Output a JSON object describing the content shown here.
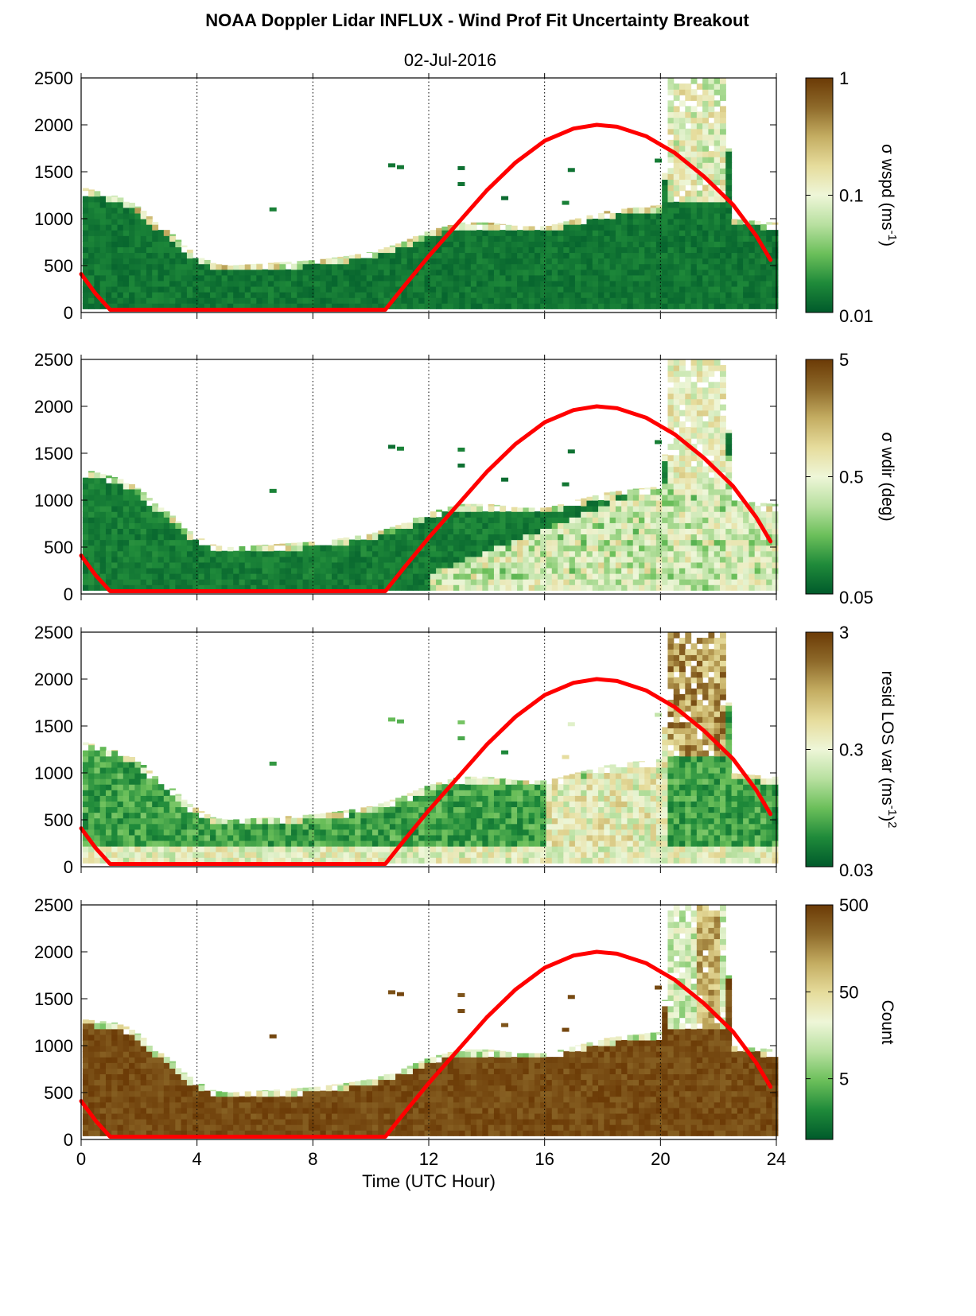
{
  "title": "NOAA Doppler Lidar INFLUX - Wind Prof Fit Uncertainty Breakout",
  "subtitle": "02-Jul-2016",
  "colors": {
    "curve": "#ff0000",
    "colormap": [
      "#005a2b",
      "#1f8a3a",
      "#6bbf5a",
      "#b8e0a0",
      "#eef6d8",
      "#e6dc9c",
      "#c4ad62",
      "#8e6a2a",
      "#6b3a06"
    ]
  },
  "chart_data": [
    {
      "type": "heatmap",
      "xlabel": "",
      "xlim": [
        0,
        24
      ],
      "xticks": [
        "0",
        "4",
        "8",
        "12",
        "16",
        "20",
        "24"
      ],
      "ylim": [
        0,
        2500
      ],
      "yticks": [
        "0",
        "500",
        "1000",
        "1500",
        "2000",
        "2500"
      ],
      "grid": "vertical dotted at 4-hour intervals",
      "colorbar": {
        "label": "σ wspd (ms",
        "label_sup": "-1",
        "label_end": ")",
        "scale": "log",
        "range": [
          0.01,
          1
        ],
        "ticks": [
          "0.01",
          "0.1",
          "1"
        ]
      },
      "data_top_m": [
        [
          0,
          1330
        ],
        [
          1,
          1250
        ],
        [
          1.5,
          1200
        ],
        [
          2,
          1100
        ],
        [
          2.5,
          950
        ],
        [
          3,
          850
        ],
        [
          3.5,
          700
        ],
        [
          4,
          600
        ],
        [
          4.5,
          520
        ],
        [
          5,
          500
        ],
        [
          6,
          520
        ],
        [
          7,
          540
        ],
        [
          8,
          560
        ],
        [
          9,
          600
        ],
        [
          10,
          650
        ],
        [
          11,
          750
        ],
        [
          11.5,
          820
        ],
        [
          12,
          880
        ],
        [
          13,
          960
        ],
        [
          14,
          960
        ],
        [
          15,
          920
        ],
        [
          16,
          920
        ],
        [
          17,
          1000
        ],
        [
          18,
          1080
        ],
        [
          19,
          1120
        ],
        [
          20,
          1150
        ],
        [
          20.2,
          2500
        ],
        [
          22.2,
          2500
        ],
        [
          22.3,
          1000
        ],
        [
          23.8,
          960
        ]
      ],
      "data_bottom_m": 40,
      "curve_points": [
        [
          0,
          410
        ],
        [
          0.5,
          200
        ],
        [
          1,
          30
        ],
        [
          10.5,
          30
        ],
        [
          11.2,
          300
        ],
        [
          12,
          600
        ],
        [
          13,
          950
        ],
        [
          14,
          1300
        ],
        [
          15,
          1600
        ],
        [
          16,
          1830
        ],
        [
          17,
          1960
        ],
        [
          17.8,
          2000
        ],
        [
          18.5,
          1980
        ],
        [
          19.5,
          1880
        ],
        [
          20.5,
          1700
        ],
        [
          21.5,
          1450
        ],
        [
          22.5,
          1150
        ],
        [
          23.3,
          820
        ],
        [
          23.8,
          560
        ]
      ]
    },
    {
      "type": "heatmap",
      "xlabel": "",
      "xlim": [
        0,
        24
      ],
      "xticks": [
        "0",
        "4",
        "8",
        "12",
        "16",
        "20",
        "24"
      ],
      "ylim": [
        0,
        2500
      ],
      "yticks": [
        "0",
        "500",
        "1000",
        "1500",
        "2000",
        "2500"
      ],
      "grid": "vertical dotted at 4-hour intervals",
      "colorbar": {
        "label": "σ wdir (deg)",
        "label_sup": "",
        "label_end": "",
        "scale": "log",
        "range": [
          0.05,
          5
        ],
        "ticks": [
          "0.05",
          "0.5",
          "5"
        ]
      },
      "data_top_m": [
        [
          0,
          1330
        ],
        [
          1,
          1250
        ],
        [
          1.5,
          1200
        ],
        [
          2,
          1100
        ],
        [
          2.5,
          950
        ],
        [
          3,
          850
        ],
        [
          3.5,
          700
        ],
        [
          4,
          600
        ],
        [
          4.5,
          520
        ],
        [
          5,
          500
        ],
        [
          6,
          520
        ],
        [
          7,
          540
        ],
        [
          8,
          560
        ],
        [
          9,
          600
        ],
        [
          10,
          650
        ],
        [
          11,
          750
        ],
        [
          11.5,
          820
        ],
        [
          12,
          880
        ],
        [
          13,
          960
        ],
        [
          14,
          960
        ],
        [
          15,
          920
        ],
        [
          16,
          920
        ],
        [
          17,
          1000
        ],
        [
          18,
          1080
        ],
        [
          19,
          1120
        ],
        [
          20,
          1150
        ],
        [
          20.2,
          2500
        ],
        [
          22.2,
          2500
        ],
        [
          22.3,
          1000
        ],
        [
          23.8,
          960
        ]
      ],
      "data_bottom_m": 40,
      "curve_points": [
        [
          0,
          410
        ],
        [
          0.5,
          200
        ],
        [
          1,
          30
        ],
        [
          10.5,
          30
        ],
        [
          11.2,
          300
        ],
        [
          12,
          600
        ],
        [
          13,
          950
        ],
        [
          14,
          1300
        ],
        [
          15,
          1600
        ],
        [
          16,
          1830
        ],
        [
          17,
          1960
        ],
        [
          17.8,
          2000
        ],
        [
          18.5,
          1980
        ],
        [
          19.5,
          1880
        ],
        [
          20.5,
          1700
        ],
        [
          21.5,
          1450
        ],
        [
          22.5,
          1150
        ],
        [
          23.3,
          820
        ],
        [
          23.8,
          560
        ]
      ]
    },
    {
      "type": "heatmap",
      "xlabel": "",
      "xlim": [
        0,
        24
      ],
      "xticks": [
        "0",
        "4",
        "8",
        "12",
        "16",
        "20",
        "24"
      ],
      "ylim": [
        0,
        2500
      ],
      "yticks": [
        "0",
        "500",
        "1000",
        "1500",
        "2000",
        "2500"
      ],
      "grid": "vertical dotted at 4-hour intervals",
      "colorbar": {
        "label": "resid LOS var (ms",
        "label_sup": "-1",
        "label_end": ")",
        "label_sup2": "2",
        "scale": "log",
        "range": [
          0.03,
          3
        ],
        "ticks": [
          "0.03",
          "0.3",
          "3"
        ]
      },
      "data_top_m": [
        [
          0,
          1330
        ],
        [
          1,
          1250
        ],
        [
          1.5,
          1200
        ],
        [
          2,
          1100
        ],
        [
          2.5,
          950
        ],
        [
          3,
          850
        ],
        [
          3.5,
          700
        ],
        [
          4,
          600
        ],
        [
          4.5,
          520
        ],
        [
          5,
          500
        ],
        [
          6,
          520
        ],
        [
          7,
          540
        ],
        [
          8,
          560
        ],
        [
          9,
          600
        ],
        [
          10,
          650
        ],
        [
          11,
          750
        ],
        [
          11.5,
          820
        ],
        [
          12,
          880
        ],
        [
          13,
          960
        ],
        [
          14,
          960
        ],
        [
          15,
          920
        ],
        [
          16,
          920
        ],
        [
          17,
          1000
        ],
        [
          18,
          1080
        ],
        [
          19,
          1120
        ],
        [
          20,
          1150
        ],
        [
          20.2,
          2500
        ],
        [
          22.2,
          2500
        ],
        [
          22.3,
          1000
        ],
        [
          23.8,
          960
        ]
      ],
      "data_bottom_m": 40,
      "curve_points": [
        [
          0,
          410
        ],
        [
          0.5,
          200
        ],
        [
          1,
          30
        ],
        [
          10.5,
          30
        ],
        [
          11.2,
          300
        ],
        [
          12,
          600
        ],
        [
          13,
          950
        ],
        [
          14,
          1300
        ],
        [
          15,
          1600
        ],
        [
          16,
          1830
        ],
        [
          17,
          1960
        ],
        [
          17.8,
          2000
        ],
        [
          18.5,
          1980
        ],
        [
          19.5,
          1880
        ],
        [
          20.5,
          1700
        ],
        [
          21.5,
          1450
        ],
        [
          22.5,
          1150
        ],
        [
          23.3,
          820
        ],
        [
          23.8,
          560
        ]
      ]
    },
    {
      "type": "heatmap",
      "xlabel": "Time (UTC Hour)",
      "xlim": [
        0,
        24
      ],
      "xticks": [
        "0",
        "4",
        "8",
        "12",
        "16",
        "20",
        "24"
      ],
      "ylim": [
        0,
        2500
      ],
      "yticks": [
        "0",
        "500",
        "1000",
        "1500",
        "2000",
        "2500"
      ],
      "grid": "vertical dotted at 4-hour intervals",
      "colorbar": {
        "label": "Count",
        "label_sup": "",
        "label_end": "",
        "scale": "log",
        "range": [
          1,
          500
        ],
        "ticks": [
          "5",
          "50",
          "500"
        ]
      },
      "data_top_m": [
        [
          0,
          1280
        ],
        [
          1,
          1250
        ],
        [
          1.5,
          1200
        ],
        [
          2,
          1100
        ],
        [
          2.5,
          950
        ],
        [
          3,
          850
        ],
        [
          3.5,
          700
        ],
        [
          4,
          600
        ],
        [
          4.5,
          520
        ],
        [
          5,
          500
        ],
        [
          6,
          520
        ],
        [
          7,
          540
        ],
        [
          8,
          560
        ],
        [
          9,
          600
        ],
        [
          10,
          650
        ],
        [
          11,
          750
        ],
        [
          11.5,
          820
        ],
        [
          12,
          880
        ],
        [
          13,
          960
        ],
        [
          14,
          960
        ],
        [
          15,
          920
        ],
        [
          16,
          920
        ],
        [
          17,
          1000
        ],
        [
          18,
          1080
        ],
        [
          19,
          1120
        ],
        [
          20,
          1150
        ],
        [
          20.2,
          2500
        ],
        [
          22.2,
          2500
        ],
        [
          22.3,
          1000
        ],
        [
          23.8,
          960
        ]
      ],
      "data_bottom_m": 40,
      "curve_points": [
        [
          0,
          410
        ],
        [
          0.5,
          200
        ],
        [
          1,
          30
        ],
        [
          10.5,
          30
        ],
        [
          11.2,
          300
        ],
        [
          12,
          600
        ],
        [
          13,
          950
        ],
        [
          14,
          1300
        ],
        [
          15,
          1600
        ],
        [
          16,
          1830
        ],
        [
          17,
          1960
        ],
        [
          17.8,
          2000
        ],
        [
          18.5,
          1980
        ],
        [
          19.5,
          1880
        ],
        [
          20.5,
          1700
        ],
        [
          21.5,
          1450
        ],
        [
          22.5,
          1150
        ],
        [
          23.3,
          820
        ],
        [
          23.8,
          560
        ]
      ]
    }
  ]
}
